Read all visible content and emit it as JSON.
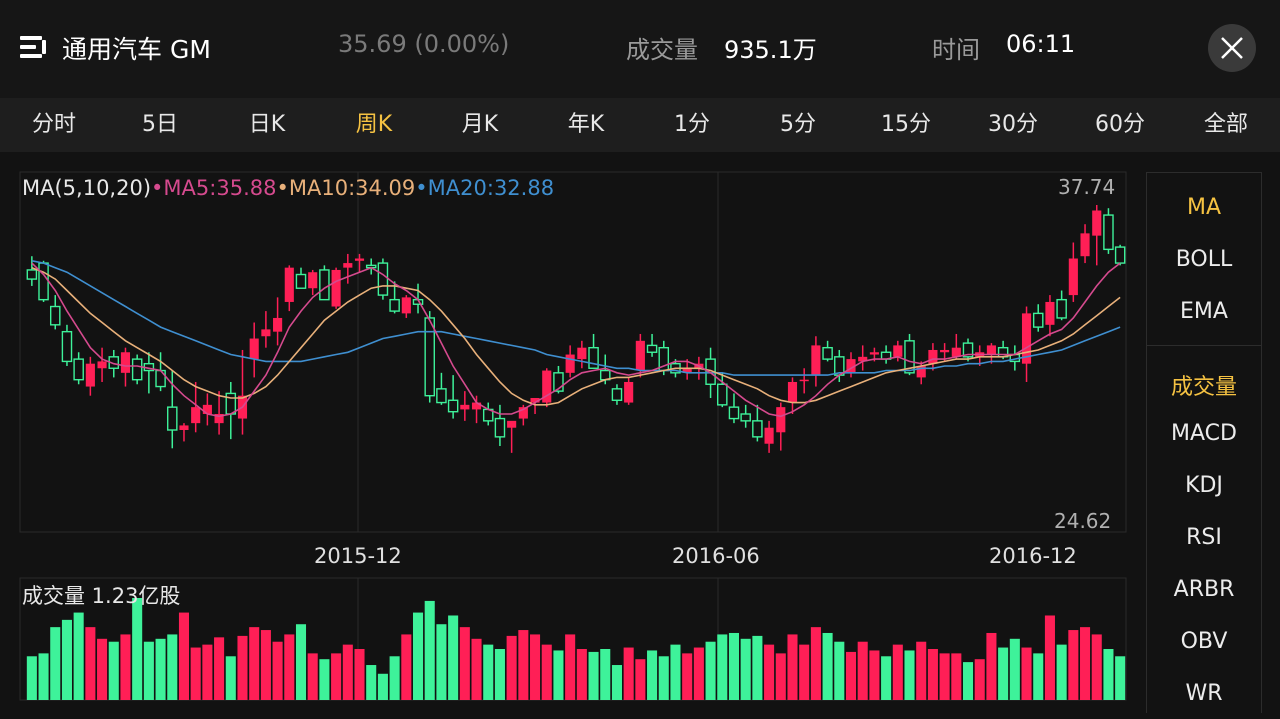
{
  "header": {
    "title": "通用汽车 GM",
    "price": "35.69 (0.00%)",
    "volume_label": "成交量",
    "volume_value": "935.1万",
    "time_label": "时间",
    "time_value": "06:11",
    "menu_icon": "menu-list-icon",
    "close_icon": "close-icon"
  },
  "tabs": [
    {
      "label": "分时"
    },
    {
      "label": "5日"
    },
    {
      "label": "日K"
    },
    {
      "label": "周K",
      "active": true
    },
    {
      "label": "月K"
    },
    {
      "label": "年K"
    },
    {
      "label": "1分"
    },
    {
      "label": "5分"
    },
    {
      "label": "15分"
    },
    {
      "label": "30分"
    },
    {
      "label": "60分"
    },
    {
      "label": "全部"
    }
  ],
  "indicators": {
    "main": [
      "MA",
      "BOLL",
      "EMA"
    ],
    "sub": [
      "成交量",
      "MACD",
      "KDJ",
      "RSI",
      "ARBR",
      "OBV",
      "WR"
    ],
    "active_main": "MA",
    "active_sub": "成交量"
  },
  "colors": {
    "up": "#ff1f56",
    "down": "#3ef29a",
    "ma5": "#d54a8e",
    "ma10": "#e8b07a",
    "ma20": "#3f8fd0",
    "accent": "#f5c242"
  },
  "chart_data": {
    "type": "candlestick",
    "legend": {
      "prefix": "MA(5,10,20)",
      "ma5": "MA5:35.88",
      "ma10": "MA10:34.09",
      "ma20": "MA20:32.88"
    },
    "price_high_label": "37.74",
    "price_low_label": "24.62",
    "ylim": [
      24.62,
      37.74
    ],
    "x_tick_labels": [
      "2015-12",
      "2016-06",
      "2016-12"
    ],
    "volume_legend": "成交量  1.23亿股",
    "candles": [
      [
        34.9,
        35.5,
        34.2,
        34.5
      ],
      [
        35.2,
        35.3,
        33.5,
        33.6
      ],
      [
        33.3,
        33.8,
        32.3,
        32.5
      ],
      [
        32.2,
        32.5,
        30.7,
        30.9
      ],
      [
        31.0,
        31.3,
        29.9,
        30.1
      ],
      [
        29.8,
        31.1,
        29.4,
        30.8
      ],
      [
        30.6,
        31.5,
        30.0,
        30.9
      ],
      [
        31.1,
        31.4,
        30.2,
        30.6
      ],
      [
        30.4,
        31.5,
        29.8,
        31.3
      ],
      [
        31.0,
        31.2,
        29.9,
        30.1
      ],
      [
        30.8,
        31.3,
        29.5,
        30.5
      ],
      [
        30.5,
        31.3,
        29.6,
        29.8
      ],
      [
        28.9,
        30.5,
        27.1,
        27.9
      ],
      [
        27.9,
        28.2,
        27.4,
        28.1
      ],
      [
        28.2,
        30.0,
        27.8,
        28.9
      ],
      [
        28.6,
        29.5,
        28.1,
        29.0
      ],
      [
        28.2,
        29.6,
        27.7,
        28.6
      ],
      [
        29.5,
        30.0,
        27.5,
        28.6
      ],
      [
        28.4,
        31.4,
        27.7,
        29.4
      ],
      [
        31.0,
        32.6,
        30.2,
        31.9
      ],
      [
        32.0,
        33.1,
        31.5,
        32.3
      ],
      [
        32.2,
        33.7,
        31.6,
        32.8
      ],
      [
        33.5,
        35.1,
        33.1,
        35.0
      ],
      [
        34.7,
        35.0,
        34.1,
        34.1
      ],
      [
        34.1,
        34.9,
        33.8,
        34.8
      ],
      [
        34.9,
        35.1,
        33.6,
        33.6
      ],
      [
        33.3,
        35.0,
        33.2,
        34.9
      ],
      [
        35.0,
        35.6,
        34.3,
        35.2
      ],
      [
        35.3,
        35.6,
        34.8,
        35.4
      ],
      [
        35.1,
        35.4,
        34.7,
        35.0
      ],
      [
        35.2,
        35.4,
        33.6,
        33.8
      ],
      [
        33.6,
        34.4,
        33.0,
        33.1
      ],
      [
        33.0,
        33.8,
        32.8,
        33.7
      ],
      [
        33.6,
        34.3,
        33.0,
        33.4
      ],
      [
        32.8,
        33.1,
        29.1,
        29.4
      ],
      [
        29.7,
        30.4,
        29.0,
        29.1
      ],
      [
        29.2,
        30.3,
        28.4,
        28.7
      ],
      [
        28.8,
        29.6,
        28.3,
        29.0
      ],
      [
        28.8,
        29.4,
        28.2,
        29.1
      ],
      [
        28.8,
        29.1,
        28.1,
        28.3
      ],
      [
        28.4,
        29.0,
        27.2,
        27.6
      ],
      [
        28.0,
        28.2,
        26.9,
        28.3
      ],
      [
        28.4,
        29.0,
        28.1,
        28.9
      ],
      [
        29.1,
        29.3,
        28.6,
        29.3
      ],
      [
        29.1,
        30.6,
        28.9,
        30.5
      ],
      [
        30.4,
        30.7,
        29.5,
        29.6
      ],
      [
        30.4,
        31.6,
        30.2,
        31.2
      ],
      [
        31.0,
        31.8,
        30.6,
        31.5
      ],
      [
        31.5,
        32.1,
        30.6,
        30.6
      ],
      [
        30.5,
        31.2,
        29.9,
        30.1
      ],
      [
        29.7,
        29.9,
        29.0,
        29.2
      ],
      [
        29.1,
        30.2,
        29.0,
        30.0
      ],
      [
        30.5,
        32.1,
        30.2,
        31.8
      ],
      [
        31.6,
        32.1,
        31.1,
        31.3
      ],
      [
        31.5,
        31.8,
        30.3,
        30.5
      ],
      [
        30.8,
        31.0,
        30.2,
        30.4
      ],
      [
        30.4,
        31.0,
        30.1,
        30.6
      ],
      [
        30.6,
        31.1,
        30.1,
        30.8
      ],
      [
        31.0,
        31.5,
        29.3,
        29.9
      ],
      [
        29.9,
        30.4,
        28.9,
        29.0
      ],
      [
        28.9,
        29.5,
        28.2,
        28.4
      ],
      [
        28.6,
        29.0,
        28.0,
        28.3
      ],
      [
        28.3,
        29.0,
        27.4,
        27.6
      ],
      [
        27.3,
        28.3,
        26.9,
        28.0
      ],
      [
        27.8,
        29.1,
        27.0,
        28.9
      ],
      [
        29.1,
        30.2,
        28.6,
        30.0
      ],
      [
        30.1,
        30.6,
        29.5,
        30.1
      ],
      [
        30.3,
        32.0,
        29.8,
        31.6
      ],
      [
        31.5,
        31.8,
        30.9,
        31.0
      ],
      [
        31.1,
        31.4,
        30.0,
        30.3
      ],
      [
        30.4,
        31.3,
        30.2,
        31.0
      ],
      [
        30.9,
        31.6,
        30.5,
        31.1
      ],
      [
        31.2,
        31.5,
        30.9,
        31.3
      ],
      [
        31.3,
        31.6,
        30.8,
        31.0
      ],
      [
        31.1,
        31.8,
        30.9,
        31.6
      ],
      [
        31.8,
        32.1,
        30.3,
        30.4
      ],
      [
        30.2,
        30.9,
        29.9,
        30.7
      ],
      [
        30.8,
        31.7,
        30.5,
        31.4
      ],
      [
        31.3,
        31.7,
        30.9,
        31.4
      ],
      [
        31.1,
        32.1,
        31.0,
        31.5
      ],
      [
        31.7,
        31.9,
        30.9,
        31.1
      ],
      [
        31.1,
        31.6,
        30.7,
        31.3
      ],
      [
        31.2,
        31.7,
        30.8,
        31.6
      ],
      [
        31.5,
        31.8,
        31.0,
        31.1
      ],
      [
        31.2,
        31.6,
        30.5,
        30.9
      ],
      [
        30.8,
        33.3,
        30.0,
        33.0
      ],
      [
        33.0,
        33.4,
        32.2,
        32.4
      ],
      [
        32.5,
        33.8,
        32.0,
        33.5
      ],
      [
        33.6,
        34.0,
        32.7,
        32.8
      ],
      [
        33.8,
        36.1,
        33.5,
        35.4
      ],
      [
        35.5,
        36.9,
        35.2,
        36.5
      ],
      [
        36.4,
        37.74,
        35.1,
        37.5
      ],
      [
        37.3,
        37.6,
        35.6,
        35.8
      ],
      [
        35.9,
        36.0,
        35.1,
        35.2
      ]
    ],
    "ma5": [
      35.2,
      34.7,
      34.0,
      33.1,
      32.3,
      31.5,
      31.0,
      30.8,
      30.7,
      30.7,
      30.6,
      30.5,
      29.9,
      29.4,
      29.0,
      28.6,
      28.5,
      28.6,
      28.9,
      29.6,
      30.3,
      31.3,
      32.4,
      33.1,
      33.7,
      34.1,
      34.4,
      34.6,
      34.8,
      35.0,
      34.7,
      34.3,
      34.0,
      33.6,
      32.7,
      31.7,
      30.7,
      29.9,
      29.1,
      28.8,
      28.6,
      28.6,
      28.8,
      29.1,
      29.4,
      29.7,
      30.1,
      30.4,
      30.5,
      30.6,
      30.4,
      30.3,
      30.4,
      30.5,
      30.7,
      30.9,
      30.9,
      30.7,
      30.4,
      30.0,
      29.6,
      29.2,
      28.9,
      28.6,
      28.5,
      28.7,
      29.0,
      29.4,
      29.9,
      30.3,
      30.6,
      30.9,
      31.0,
      31.0,
      31.1,
      30.9,
      30.8,
      31.0,
      31.0,
      31.1,
      31.2,
      31.2,
      31.2,
      31.2,
      31.2,
      31.5,
      31.8,
      32.1,
      32.3,
      32.8,
      33.5,
      34.2,
      34.8,
      35.2
    ],
    "ma10": [
      35.0,
      34.8,
      34.5,
      34.0,
      33.5,
      33.0,
      32.6,
      32.2,
      31.8,
      31.5,
      31.2,
      30.9,
      30.5,
      30.1,
      29.8,
      29.6,
      29.4,
      29.3,
      29.3,
      29.5,
      29.8,
      30.3,
      30.9,
      31.5,
      32.1,
      32.7,
      33.1,
      33.5,
      33.8,
      34.1,
      34.2,
      34.2,
      34.1,
      34.0,
      33.6,
      33.1,
      32.5,
      31.9,
      31.2,
      30.6,
      30.0,
      29.5,
      29.2,
      29.0,
      29.0,
      29.1,
      29.4,
      29.7,
      29.9,
      30.1,
      30.2,
      30.2,
      30.3,
      30.4,
      30.5,
      30.6,
      30.6,
      30.6,
      30.5,
      30.3,
      30.1,
      29.9,
      29.7,
      29.4,
      29.2,
      29.1,
      29.1,
      29.2,
      29.4,
      29.6,
      29.8,
      30.0,
      30.2,
      30.4,
      30.5,
      30.6,
      30.7,
      30.8,
      30.9,
      31.0,
      31.0,
      31.1,
      31.1,
      31.1,
      31.2,
      31.3,
      31.4,
      31.6,
      31.8,
      32.1,
      32.5,
      32.9,
      33.3,
      33.7
    ],
    "ma20": [
      35.3,
      35.2,
      35.0,
      34.8,
      34.5,
      34.2,
      33.9,
      33.6,
      33.3,
      33.0,
      32.7,
      32.4,
      32.2,
      32.0,
      31.8,
      31.6,
      31.4,
      31.2,
      31.1,
      31.0,
      30.9,
      30.9,
      30.9,
      30.9,
      31.0,
      31.1,
      31.2,
      31.3,
      31.5,
      31.7,
      31.9,
      32.0,
      32.1,
      32.2,
      32.2,
      32.2,
      32.1,
      32.0,
      31.9,
      31.8,
      31.7,
      31.6,
      31.5,
      31.4,
      31.2,
      31.1,
      31.0,
      30.9,
      30.8,
      30.7,
      30.6,
      30.6,
      30.5,
      30.5,
      30.5,
      30.5,
      30.4,
      30.4,
      30.4,
      30.4,
      30.3,
      30.3,
      30.3,
      30.3,
      30.3,
      30.3,
      30.3,
      30.3,
      30.3,
      30.4,
      30.4,
      30.4,
      30.4,
      30.5,
      30.5,
      30.5,
      30.6,
      30.6,
      30.7,
      30.7,
      30.8,
      30.8,
      30.9,
      30.9,
      31.0,
      31.1,
      31.2,
      31.3,
      31.4,
      31.6,
      31.8,
      32.0,
      32.2,
      32.4
    ],
    "volume": [
      30,
      32,
      50,
      55,
      60,
      50,
      42,
      40,
      45,
      70,
      40,
      42,
      45,
      60,
      36,
      38,
      43,
      30,
      44,
      50,
      48,
      40,
      45,
      52,
      32,
      28,
      32,
      38,
      35,
      24,
      18,
      30,
      45,
      60,
      68,
      52,
      58,
      50,
      42,
      38,
      35,
      44,
      48,
      45,
      38,
      34,
      45,
      35,
      33,
      35,
      24,
      36,
      28,
      34,
      30,
      38,
      32,
      36,
      40,
      45,
      46,
      42,
      44,
      38,
      32,
      45,
      38,
      50,
      46,
      40,
      33,
      40,
      34,
      30,
      38,
      34,
      40,
      35,
      32,
      32,
      26,
      28,
      46,
      36,
      42,
      36,
      32,
      58,
      38,
      48,
      50,
      45,
      35,
      30
    ]
  }
}
